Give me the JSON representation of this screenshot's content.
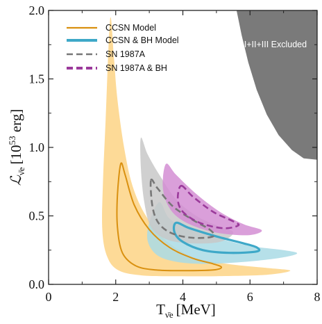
{
  "chart_data": {
    "type": "contour",
    "xlabel": "T",
    "xlabel_sub": "ν̄e",
    "xlabel_unit": "[MeV]",
    "ylabel": "ℒ",
    "ylabel_sub": "ν̄e",
    "ylabel_unit": "[10",
    "ylabel_exp": "53",
    "ylabel_unit_end": " erg]",
    "xlim": [
      0,
      8
    ],
    "ylim": [
      0,
      2.0
    ],
    "xticks": [
      "0",
      "2",
      "4",
      "6",
      "8"
    ],
    "yticks": [
      "0.0",
      "0.5",
      "1.0",
      "1.5",
      "2.0"
    ],
    "excluded_region": {
      "label": "SK I+II+III Excluded",
      "color": "#7a7a7a",
      "boundary": [
        [
          5.6,
          2.0
        ],
        [
          5.75,
          1.82
        ],
        [
          5.95,
          1.62
        ],
        [
          6.2,
          1.42
        ],
        [
          6.5,
          1.24
        ],
        [
          6.85,
          1.09
        ],
        [
          7.25,
          0.98
        ],
        [
          7.6,
          0.92
        ],
        [
          8.0,
          0.91
        ]
      ]
    },
    "series": [
      {
        "name": "CCSN Model",
        "color": "#d9900f",
        "fill": "#fdd485",
        "style": "solid",
        "outer_region": [
          [
            1.85,
            1.95
          ],
          [
            1.95,
            1.65
          ],
          [
            2.05,
            1.35
          ],
          [
            2.25,
            1.0
          ],
          [
            2.5,
            0.72
          ],
          [
            2.9,
            0.5
          ],
          [
            3.5,
            0.32
          ],
          [
            4.3,
            0.2
          ],
          [
            5.3,
            0.15
          ],
          [
            6.5,
            0.12
          ],
          [
            7.2,
            0.1
          ],
          [
            6.5,
            0.07
          ],
          [
            5.0,
            0.06
          ],
          [
            3.8,
            0.06
          ],
          [
            2.8,
            0.065
          ],
          [
            2.1,
            0.1
          ],
          [
            1.75,
            0.2
          ],
          [
            1.6,
            0.4
          ],
          [
            1.62,
            0.75
          ],
          [
            1.7,
            1.2
          ],
          [
            1.78,
            1.7
          ]
        ],
        "contour": [
          [
            2.15,
            0.88
          ],
          [
            2.28,
            0.8
          ],
          [
            2.55,
            0.58
          ],
          [
            3.0,
            0.4
          ],
          [
            3.6,
            0.27
          ],
          [
            4.3,
            0.19
          ],
          [
            4.9,
            0.15
          ],
          [
            5.15,
            0.125
          ],
          [
            4.9,
            0.105
          ],
          [
            4.0,
            0.1
          ],
          [
            3.2,
            0.105
          ],
          [
            2.6,
            0.135
          ],
          [
            2.2,
            0.23
          ],
          [
            2.05,
            0.42
          ],
          [
            2.05,
            0.65
          ]
        ]
      },
      {
        "name": "CCSN & BH Model",
        "color": "#3ea8c8",
        "fill": "#a9dbe5",
        "style": "solid",
        "outer_region": [
          [
            3.3,
            0.6
          ],
          [
            3.6,
            0.48
          ],
          [
            4.2,
            0.4
          ],
          [
            5.0,
            0.34
          ],
          [
            6.0,
            0.28
          ],
          [
            7.0,
            0.25
          ],
          [
            7.4,
            0.225
          ],
          [
            6.8,
            0.19
          ],
          [
            5.6,
            0.16
          ],
          [
            4.5,
            0.15
          ],
          [
            3.7,
            0.17
          ],
          [
            3.2,
            0.22
          ],
          [
            2.95,
            0.32
          ],
          [
            3.0,
            0.45
          ]
        ],
        "contour": [
          [
            3.8,
            0.45
          ],
          [
            4.2,
            0.41
          ],
          [
            5.0,
            0.35
          ],
          [
            5.8,
            0.3
          ],
          [
            6.2,
            0.27
          ],
          [
            6.2,
            0.24
          ],
          [
            5.4,
            0.23
          ],
          [
            4.6,
            0.25
          ],
          [
            4.0,
            0.31
          ],
          [
            3.75,
            0.38
          ]
        ]
      },
      {
        "name": "SN 1987A",
        "color": "#777777",
        "fill": "#c8c8c8",
        "style": "dashed",
        "outer_region": [
          [
            2.75,
            1.07
          ],
          [
            2.95,
            0.95
          ],
          [
            3.3,
            0.8
          ],
          [
            3.8,
            0.62
          ],
          [
            4.4,
            0.5
          ],
          [
            5.0,
            0.43
          ],
          [
            5.5,
            0.38
          ],
          [
            5.1,
            0.31
          ],
          [
            4.2,
            0.3
          ],
          [
            3.5,
            0.33
          ],
          [
            3.05,
            0.42
          ],
          [
            2.85,
            0.6
          ],
          [
            2.75,
            0.85
          ]
        ],
        "contour": [
          [
            3.05,
            0.76
          ],
          [
            3.25,
            0.7
          ],
          [
            3.7,
            0.57
          ],
          [
            4.3,
            0.47
          ],
          [
            4.8,
            0.4
          ],
          [
            4.9,
            0.35
          ],
          [
            4.3,
            0.34
          ],
          [
            3.7,
            0.37
          ],
          [
            3.3,
            0.44
          ],
          [
            3.1,
            0.56
          ]
        ]
      },
      {
        "name": "SN 1987A & BH",
        "color": "#9b3a9b",
        "fill": "#d48ed4",
        "style": "dashed",
        "outer_region": [
          [
            3.5,
            0.88
          ],
          [
            3.8,
            0.8
          ],
          [
            4.4,
            0.66
          ],
          [
            5.1,
            0.53
          ],
          [
            5.8,
            0.44
          ],
          [
            6.35,
            0.395
          ],
          [
            6.0,
            0.36
          ],
          [
            5.2,
            0.37
          ],
          [
            4.5,
            0.41
          ],
          [
            3.9,
            0.48
          ],
          [
            3.55,
            0.58
          ],
          [
            3.4,
            0.72
          ]
        ],
        "contour": [
          [
            3.95,
            0.72
          ],
          [
            4.3,
            0.64
          ],
          [
            4.9,
            0.53
          ],
          [
            5.5,
            0.46
          ],
          [
            5.65,
            0.43
          ],
          [
            5.2,
            0.41
          ],
          [
            4.5,
            0.45
          ],
          [
            4.0,
            0.53
          ],
          [
            3.85,
            0.62
          ]
        ]
      }
    ],
    "legend": {
      "placement": "top-left"
    }
  }
}
